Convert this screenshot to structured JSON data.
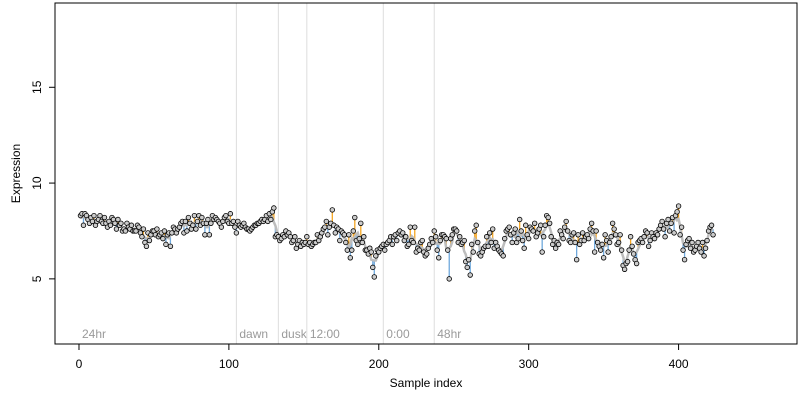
{
  "chart_data": {
    "type": "scatter",
    "title": "",
    "xlabel": "Sample index",
    "ylabel": "Expression",
    "xlim": [
      -16,
      479
    ],
    "ylim": [
      1.6,
      19.4
    ],
    "x_ticks": [
      0,
      100,
      200,
      300,
      400
    ],
    "y_ticks": [
      5,
      10,
      15
    ],
    "grid": false,
    "colors": {
      "point_fill": "#cccccc",
      "point_stroke": "#000000",
      "rising_segment": "#f5a623",
      "falling_segment": "#6fa8dc",
      "trend_line": "#bdbdbd",
      "region_line": "#dddddd",
      "region_label": "#9a9a9a"
    },
    "regions": [
      {
        "label": "24hr",
        "start": 0
      },
      {
        "label": "dawn",
        "start": 105
      },
      {
        "label": "dusk",
        "start": 133
      },
      {
        "label": "12:00",
        "start": 152
      },
      {
        "label": "0:00",
        "start": 203
      },
      {
        "label": "48hr",
        "start": 237
      }
    ],
    "series": [
      {
        "x_start": 1,
        "values": [
          8.3,
          8.4,
          7.8,
          8.4,
          8.3,
          8.1,
          7.9,
          8.2,
          8.0,
          8.3,
          7.8,
          8.0,
          8.1,
          8.3,
          8.0,
          7.9,
          8.2,
          7.9,
          7.7,
          8.0,
          7.8,
          8.2,
          8.1,
          7.9,
          7.6,
          8.1,
          7.8,
          7.9,
          7.5,
          7.6,
          7.5,
          7.9,
          7.7,
          7.6,
          7.8,
          7.5,
          7.5,
          7.5,
          7.8,
          7.7,
          7.4,
          7.2,
          7.6,
          6.9,
          6.7,
          7.4,
          7.0,
          7.3,
          7.5,
          7.5,
          7.3,
          7.6,
          7.2,
          7.3,
          7.4,
          7.1,
          7.5,
          6.8,
          7.3,
          7.4,
          6.7,
          7.4,
          7.7,
          7.6,
          7.4,
          7.6,
          7.7,
          7.9,
          8.0,
          7.4,
          8.0,
          7.5,
          8.2,
          7.9,
          7.6,
          7.8,
          8.3,
          7.6,
          8.0,
          8.3,
          7.8,
          8.2,
          7.9,
          7.3,
          7.9,
          8.1,
          7.3,
          7.9,
          8.3,
          8.1,
          8.2,
          8.1,
          8.0,
          7.9,
          7.7,
          8.0,
          8.2,
          8.3,
          8.0,
          7.9,
          8.4,
          7.9,
          8.0,
          7.7,
          7.4,
          8.0,
          7.8,
          7.7,
          7.8,
          7.9,
          7.7,
          7.6,
          7.6,
          7.5,
          7.6,
          7.7,
          7.8,
          7.8,
          7.9,
          7.9,
          8.0,
          8.1,
          8.0,
          8.1,
          8.3,
          8.0,
          8.4,
          8.1,
          8.5,
          8.7,
          7.2,
          7.3,
          7.2,
          7.0,
          7.1,
          7.3,
          7.2,
          7.5,
          7.3,
          7.4,
          7.2,
          6.9,
          7.0,
          7.2,
          6.6,
          6.8,
          7.0,
          6.7,
          6.9,
          6.8,
          6.9,
          7.2,
          6.8,
          6.9,
          6.7,
          6.8,
          6.9,
          6.9,
          7.3,
          7.0,
          7.2,
          7.4,
          7.6,
          7.7,
          8.0,
          7.3,
          7.7,
          7.9,
          8.6,
          7.8,
          7.4,
          7.7,
          7.6,
          7.0,
          7.5,
          7.4,
          7.3,
          6.9,
          6.5,
          7.3,
          6.1,
          6.5,
          7.5,
          8.2,
          7.0,
          6.8,
          7.1,
          7.9,
          6.9,
          7.2,
          6.5,
          6.5,
          6.3,
          6.6,
          6.4,
          5.6,
          5.1,
          6.2,
          6.5,
          6.4,
          6.6,
          6.7,
          6.8,
          6.5,
          6.8,
          6.9,
          7.0,
          7.2,
          6.8,
          7.2,
          7.3,
          7.0,
          7.4,
          7.5,
          7.3,
          7.4,
          7.0,
          7.2,
          6.7,
          6.8,
          7.7,
          7.0,
          6.9,
          7.7,
          6.4,
          6.6,
          6.5,
          6.9,
          7.0,
          6.4,
          6.2,
          6.3,
          6.6,
          6.8,
          7.1,
          6.9,
          7.5,
          7.2,
          6.5,
          6.1,
          7.0,
          7.3,
          7.3,
          7.2,
          7.1,
          6.5,
          5.0,
          7.1,
          7.3,
          7.6,
          7.6,
          7.5,
          6.9,
          7.2,
          6.8,
          6.9,
          7.0,
          5.9,
          5.6,
          6.0,
          5.2,
          6.8,
          6.4,
          7.5,
          7.8,
          6.9,
          6.3,
          6.2,
          6.4,
          6.6,
          6.7,
          7.2,
          6.7,
          7.4,
          6.9,
          7.6,
          6.6,
          6.9,
          6.7,
          6.5,
          6.4,
          6.3,
          6.2,
          7.1,
          7.5,
          7.6,
          7.7,
          7.3,
          6.9,
          7.4,
          7.6,
          6.9,
          7.1,
          8.1,
          7.5,
          7.0,
          6.6,
          7.8,
          7.3,
          7.1,
          7.7,
          7.6,
          7.5,
          7.9,
          7.2,
          7.4,
          7.6,
          7.8,
          6.4,
          7.2,
          7.8,
          8.3,
          8.2,
          7.9,
          7.2,
          6.8,
          7.0,
          6.6,
          6.9,
          6.8,
          7.5,
          7.3,
          7.1,
          7.7,
          8.0,
          7.5,
          7.0,
          6.9,
          7.3,
          7.4,
          6.9,
          6.0,
          7.3,
          6.8,
          7.0,
          7.4,
          7.0,
          7.2,
          7.3,
          7.1,
          7.6,
          7.9,
          7.5,
          6.4,
          7.5,
          6.9,
          6.7,
          6.5,
          6.8,
          6.1,
          7.3,
          7.0,
          6.4,
          6.9,
          7.2,
          7.9,
          7.6,
          7.3,
          6.8,
          6.9,
          7.3,
          6.5,
          5.7,
          5.5,
          5.8,
          5.9,
          6.5,
          7.2,
          6.7,
          6.3,
          6.0,
          5.8,
          6.9,
          7.0,
          7.1,
          6.9,
          7.2,
          7.5,
          7.4,
          6.7,
          7.0,
          7.4,
          7.2,
          7.1,
          7.4,
          7.3,
          7.6,
          7.8,
          8.0,
          7.6,
          7.2,
          7.9,
          8.1,
          7.5,
          7.9,
          8.2,
          7.4,
          8.3,
          8.5,
          8.8,
          7.3,
          7.7,
          6.5,
          6.0,
          6.8,
          7.0,
          7.1,
          6.6,
          6.9,
          6.4,
          6.5,
          6.7,
          6.9,
          6.6,
          6.4,
          6.9,
          6.2,
          6.6,
          7.0,
          7.5,
          7.7,
          7.8,
          7.3
        ]
      }
    ]
  }
}
